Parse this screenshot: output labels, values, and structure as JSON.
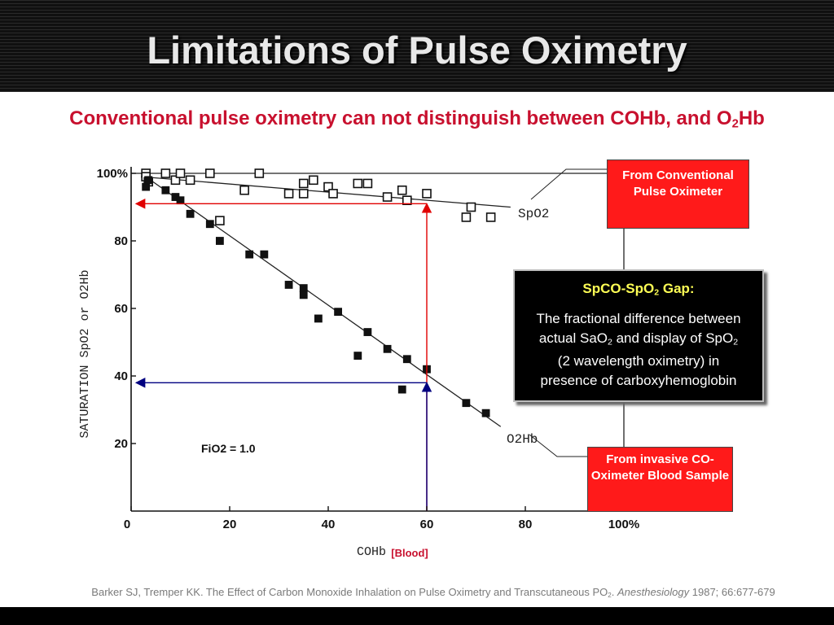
{
  "slide": {
    "title": "Limitations of Pulse Oximetry",
    "subtitle_main": "Conventional pulse oximetry can not distinguish between COHb, and O",
    "subtitle_sub": "2",
    "subtitle_tail": "Hb"
  },
  "callouts": {
    "conventional": "From Conventional Pulse Oximeter",
    "invasive": "From invasive CO-Oximeter Blood Sample"
  },
  "gap_box": {
    "title_pre": "SpCO-SpO",
    "title_sub": "2",
    "title_post": " Gap:",
    "line1": "The fractional difference between",
    "line2_pre": "actual SaO",
    "line2_sub1": "2",
    "line2_mid": " and display of SpO",
    "line2_sub2": "2",
    "line3": "(2 wavelength oximetry) in",
    "line4": "presence of carboxyhemoglobin"
  },
  "citation": {
    "pre": "Barker SJ, Tremper KK. The Effect of Carbon Monoxide Inhalation on Pulse Oximetry and Transcutaneous PO",
    "sub": "2",
    "dot": ". ",
    "journal": "Anesthesiology",
    "post": " 1987; 66:677-679"
  },
  "colors": {
    "title_bar": "#161616",
    "subtitle_red": "#c8102e",
    "callout_red": "#ff1a1a",
    "gap_title_yellow": "#ffff55",
    "arrow_red": "#e00000",
    "arrow_blue": "#000080"
  },
  "chart_data": {
    "type": "scatter",
    "xlabel": "COHb",
    "xlabel_note": "[Blood]",
    "ylabel": "SATURATION SpO2 or O2Hb",
    "x_ticks": [
      "0",
      "20",
      "40",
      "60",
      "80",
      "100%"
    ],
    "y_ticks": [
      "20",
      "40",
      "60",
      "80",
      "100%"
    ],
    "xlim": [
      0,
      100
    ],
    "ylim": [
      0,
      100
    ],
    "annotation": "FiO2 = 1.0",
    "series": [
      {
        "name": "SpO2",
        "marker": "open-square",
        "points": [
          [
            3,
            100
          ],
          [
            3,
            99
          ],
          [
            3.5,
            97.5
          ],
          [
            7,
            100
          ],
          [
            9,
            98
          ],
          [
            10,
            100
          ],
          [
            12,
            98
          ],
          [
            16,
            100
          ],
          [
            18,
            86
          ],
          [
            23,
            95
          ],
          [
            26,
            100
          ],
          [
            32,
            94
          ],
          [
            35,
            94
          ],
          [
            35,
            97
          ],
          [
            37,
            98
          ],
          [
            40,
            96
          ],
          [
            41,
            94
          ],
          [
            46,
            97
          ],
          [
            48,
            97
          ],
          [
            52,
            93
          ],
          [
            55,
            95
          ],
          [
            56,
            92
          ],
          [
            60,
            94
          ],
          [
            68,
            87
          ],
          [
            69,
            90
          ],
          [
            73,
            87
          ]
        ]
      },
      {
        "name": "O2Hb",
        "marker": "filled-square",
        "points": [
          [
            3,
            96
          ],
          [
            3.5,
            98
          ],
          [
            7,
            95
          ],
          [
            9,
            93
          ],
          [
            10,
            92
          ],
          [
            12,
            88
          ],
          [
            16,
            85
          ],
          [
            18,
            80
          ],
          [
            24,
            76
          ],
          [
            27,
            76
          ],
          [
            32,
            67
          ],
          [
            35,
            64
          ],
          [
            35,
            66
          ],
          [
            38,
            57
          ],
          [
            42,
            59
          ],
          [
            46,
            46
          ],
          [
            48,
            53
          ],
          [
            52,
            48
          ],
          [
            55,
            36
          ],
          [
            56,
            45
          ],
          [
            60,
            42
          ],
          [
            68,
            32
          ],
          [
            72,
            29
          ]
        ]
      }
    ],
    "fit_lines": [
      {
        "name": "SpO2",
        "from": [
          2,
          99
        ],
        "to": [
          77,
          90
        ]
      },
      {
        "name": "O2Hb",
        "from": [
          2,
          100
        ],
        "to": [
          75,
          25
        ]
      }
    ],
    "reference_line": {
      "y": 100,
      "x_from": 0,
      "x_to": 100
    },
    "arrows": [
      {
        "color": "red",
        "from": [
          60,
          0
        ],
        "to": [
          60,
          91
        ]
      },
      {
        "color": "red",
        "from": [
          60,
          91
        ],
        "to": [
          1,
          91
        ]
      },
      {
        "color": "blue",
        "from": [
          60,
          0
        ],
        "to": [
          60,
          38
        ]
      },
      {
        "color": "blue",
        "from": [
          60,
          38
        ],
        "to": [
          1,
          38
        ]
      }
    ]
  }
}
